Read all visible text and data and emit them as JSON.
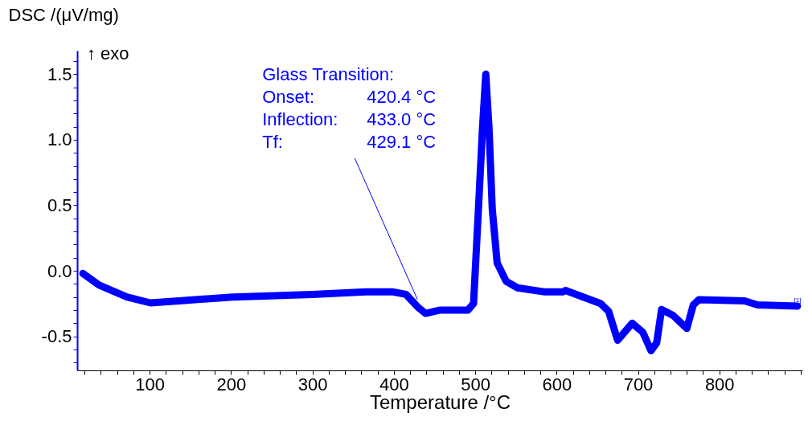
{
  "chart_data": {
    "type": "line",
    "xlabel": "Temperature /°C",
    "ylabel": "DSC /(μV/mg)",
    "xlim": [
      11,
      902
    ],
    "ylim": [
      -0.76,
      1.68
    ],
    "xticks": [
      {
        "value": 20,
        "label": null
      },
      {
        "value": 40,
        "label": null
      },
      {
        "value": 60,
        "label": null
      },
      {
        "value": 80,
        "label": null
      },
      100,
      {
        "value": 120,
        "label": null
      },
      {
        "value": 140,
        "label": null
      },
      {
        "value": 160,
        "label": null
      },
      {
        "value": 180,
        "label": null
      },
      200,
      {
        "value": 220,
        "label": null
      },
      {
        "value": 240,
        "label": null
      },
      {
        "value": 260,
        "label": null
      },
      {
        "value": 280,
        "label": null
      },
      300,
      {
        "value": 320,
        "label": null
      },
      {
        "value": 340,
        "label": null
      },
      {
        "value": 360,
        "label": null
      },
      {
        "value": 380,
        "label": null
      },
      400,
      {
        "value": 420,
        "label": null
      },
      {
        "value": 440,
        "label": null
      },
      {
        "value": 460,
        "label": null
      },
      {
        "value": 480,
        "label": null
      },
      500,
      {
        "value": 520,
        "label": null
      },
      {
        "value": 540,
        "label": null
      },
      {
        "value": 560,
        "label": null
      },
      {
        "value": 580,
        "label": null
      },
      600,
      {
        "value": 620,
        "label": null
      },
      {
        "value": 640,
        "label": null
      },
      {
        "value": 660,
        "label": null
      },
      {
        "value": 680,
        "label": null
      },
      700,
      {
        "value": 720,
        "label": null
      },
      {
        "value": 740,
        "label": null
      },
      {
        "value": 760,
        "label": null
      },
      {
        "value": 780,
        "label": null
      },
      800,
      {
        "value": 820,
        "label": null
      },
      {
        "value": 840,
        "label": null
      },
      {
        "value": 860,
        "label": null
      },
      {
        "value": 880,
        "label": null
      },
      {
        "value": 900,
        "label": null
      }
    ],
    "yticks": [
      {
        "value": -0.7,
        "label": null
      },
      {
        "value": -0.6,
        "label": null
      },
      {
        "value": -0.5,
        "label": "-0.5"
      },
      {
        "value": -0.4,
        "label": null
      },
      {
        "value": -0.3,
        "label": null
      },
      {
        "value": -0.2,
        "label": null
      },
      {
        "value": -0.1,
        "label": null
      },
      {
        "value": 0,
        "label": "0.0"
      },
      {
        "value": 0.1,
        "label": null
      },
      {
        "value": 0.2,
        "label": null
      },
      {
        "value": 0.3,
        "label": null
      },
      {
        "value": 0.4,
        "label": null
      },
      {
        "value": 0.5,
        "label": "0.5"
      },
      {
        "value": 0.6,
        "label": null
      },
      {
        "value": 0.7,
        "label": null
      },
      {
        "value": 0.8,
        "label": null
      },
      {
        "value": 0.9,
        "label": null
      },
      {
        "value": 1,
        "label": "1.0"
      },
      {
        "value": 1.1,
        "label": null
      },
      {
        "value": 1.2,
        "label": null
      },
      {
        "value": 1.3,
        "label": null
      },
      {
        "value": 1.4,
        "label": null
      },
      {
        "value": 1.5,
        "label": "1.5"
      },
      {
        "value": 1.6,
        "label": null
      }
    ],
    "x": [
      18,
      38,
      72,
      101,
      136,
      202,
      300,
      366,
      398,
      415,
      430,
      439,
      457,
      491,
      498,
      504,
      509,
      513,
      517,
      521,
      527,
      538,
      552,
      584,
      608,
      611,
      654,
      664,
      675,
      693,
      706,
      716,
      723,
      729,
      743,
      760,
      768,
      775,
      831,
      847,
      896
    ],
    "series": [
      {
        "color": "#0000ff",
        "values": [
          -0.02,
          -0.11,
          -0.2,
          -0.245,
          -0.23,
          -0.2,
          -0.18,
          -0.16,
          -0.16,
          -0.18,
          -0.28,
          -0.325,
          -0.3,
          -0.3,
          -0.25,
          0.47,
          1.09,
          1.5,
          1.09,
          0.47,
          0.06,
          -0.08,
          -0.13,
          -0.16,
          -0.16,
          -0.15,
          -0.25,
          -0.31,
          -0.53,
          -0.4,
          -0.47,
          -0.61,
          -0.55,
          -0.295,
          -0.34,
          -0.44,
          -0.26,
          -0.22,
          -0.23,
          -0.26,
          -0.27
        ]
      }
    ],
    "annotations": [
      "↑ exo",
      "Glass Transition:",
      "Onset:",
      "420.4 °C",
      "Inflection:",
      "433.0 °C",
      "Tf:",
      {
        "text": "429.1 °C",
        "x": 429.1,
        "y": -0.22
      },
      {
        "text": "[1]",
        "x": 896,
        "y": -0.27
      }
    ]
  }
}
